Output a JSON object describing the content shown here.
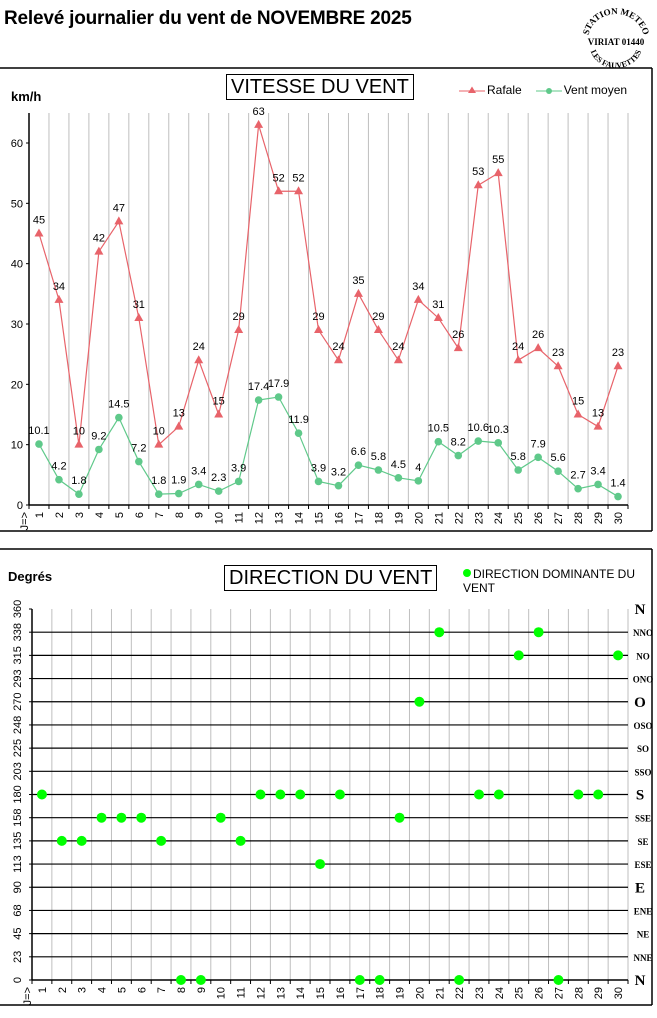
{
  "header": {
    "title": "Relevé journalier du vent de NOVEMBRE 2025",
    "stamp": {
      "top": "STATION METEO",
      "middle": "VIRIAT 01440",
      "bottom": "LES FAUVETTES"
    }
  },
  "speed_chart": {
    "title": "VITESSE DU VENT",
    "unit": "km/h",
    "x_prefix": "J=>",
    "legend": {
      "gust": "Rafale",
      "mean": "Vent moyen"
    },
    "colors": {
      "gust": "#e8636a",
      "mean": "#5fc98a",
      "grid": "#bfbfbf"
    }
  },
  "direction_chart": {
    "title": "DIRECTION DU VENT",
    "unit": "Degrés",
    "x_prefix": "J=>",
    "legend": "DIRECTION DOMINANTE DU VENT",
    "colors": {
      "dot": "#00ff00",
      "grid_h": "#000000",
      "grid_v": "#bfbfbf"
    }
  },
  "chart_data": [
    {
      "type": "line",
      "title": "VITESSE DU VENT",
      "xlabel": "J=>",
      "ylabel": "km/h",
      "ylim": [
        0,
        65
      ],
      "yticks": [
        0,
        10,
        20,
        30,
        40,
        50,
        60
      ],
      "grid": "vertical",
      "legend_position": "top-right",
      "x": [
        1,
        2,
        3,
        4,
        5,
        6,
        7,
        8,
        9,
        10,
        11,
        12,
        13,
        14,
        15,
        16,
        17,
        18,
        19,
        20,
        21,
        22,
        23,
        24,
        25,
        26,
        27,
        28,
        29,
        30
      ],
      "series": [
        {
          "name": "Rafale",
          "marker": "triangle",
          "values": [
            45,
            34,
            10,
            42,
            47,
            31,
            10,
            13,
            24,
            15,
            29,
            63,
            52,
            52,
            29,
            24,
            35,
            29,
            24,
            34,
            31,
            26,
            53,
            55,
            24,
            26,
            23,
            15,
            13,
            23
          ]
        },
        {
          "name": "Vent moyen",
          "marker": "circle",
          "values": [
            10.1,
            4.2,
            1.8,
            9.2,
            14.5,
            7.2,
            1.8,
            1.9,
            3.4,
            2.3,
            3.9,
            17.4,
            17.9,
            11.9,
            3.9,
            3.2,
            6.6,
            5.8,
            4.5,
            4,
            10.5,
            8.2,
            10.6,
            10.3,
            5.8,
            7.9,
            5.6,
            2.7,
            3.4,
            1.4
          ]
        }
      ]
    },
    {
      "type": "scatter",
      "title": "DIRECTION DU VENT",
      "xlabel": "J=>",
      "ylabel": "Degrés",
      "ylim": [
        0,
        360
      ],
      "yticks": [
        0,
        23,
        45,
        68,
        90,
        113,
        135,
        158,
        180,
        203,
        225,
        248,
        270,
        293,
        315,
        338,
        360
      ],
      "ytick_values": [
        0,
        22.5,
        45,
        67.5,
        90,
        112.5,
        135,
        157.5,
        180,
        202.5,
        225,
        247.5,
        270,
        292.5,
        315,
        337.5,
        360
      ],
      "right_labels": [
        "N",
        "NNE",
        "NE",
        "ENE",
        "E",
        "ESE",
        "SE",
        "SSE",
        "S",
        "SSO",
        "SO",
        "OSO",
        "O",
        "ONO",
        "NO",
        "NNO",
        "N"
      ],
      "grid": "both",
      "legend_position": "top-right",
      "x": [
        1,
        2,
        3,
        4,
        5,
        6,
        7,
        8,
        9,
        10,
        11,
        12,
        13,
        14,
        15,
        16,
        17,
        18,
        19,
        20,
        21,
        22,
        23,
        24,
        25,
        26,
        27,
        28,
        29,
        30
      ],
      "series": [
        {
          "name": "DIRECTION DOMINANTE DU VENT",
          "values": [
            180,
            135,
            135,
            157.5,
            157.5,
            157.5,
            135,
            0,
            0,
            157.5,
            135,
            180,
            180,
            180,
            112.5,
            180,
            0,
            0,
            157.5,
            270,
            337.5,
            0,
            180,
            180,
            315,
            337.5,
            0,
            180,
            180,
            315
          ]
        }
      ]
    }
  ]
}
